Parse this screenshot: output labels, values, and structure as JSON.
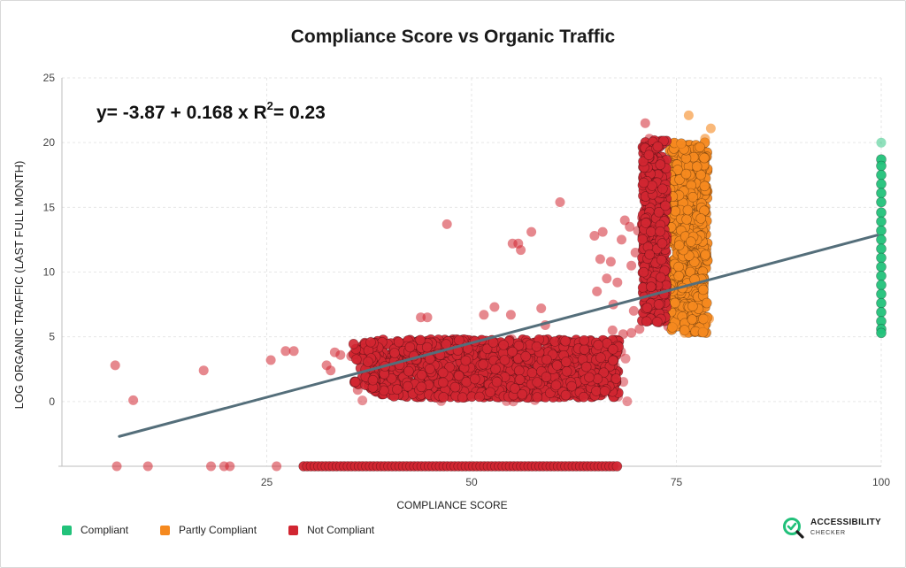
{
  "chart_data": {
    "type": "scatter",
    "title": "Compliance Score vs Organic Traffic",
    "xlabel": "COMPLIANCE SCORE",
    "ylabel": "LOG ORGANIC TRAFFIC (LAST FULL MONTH)",
    "xlim": [
      0,
      100
    ],
    "ylim": [
      -5,
      25
    ],
    "x_ticks": [
      "25",
      "50",
      "75",
      "100"
    ],
    "y_ticks": [
      "0",
      "5",
      "10",
      "15",
      "20",
      "25"
    ],
    "grid": true,
    "legend_position": "bottom-left",
    "annotation": {
      "text_main": "y= -3.87 + 0.168 x R",
      "superscript": "2",
      "text_tail": "= 0.23"
    },
    "regression": {
      "intercept": -3.87,
      "slope": 0.168,
      "r_squared": 0.23,
      "x_range": [
        7,
        99.5
      ]
    },
    "series": [
      {
        "name": "Compliant",
        "color": "#22c27a",
        "description": "Scores of 100, traffic from about 5.3 to 20",
        "points": [
          [
            100,
            20
          ],
          [
            100,
            18.7
          ],
          [
            100,
            18.2
          ],
          [
            100,
            17.5
          ],
          [
            100,
            16.8
          ],
          [
            100,
            16.1
          ],
          [
            100,
            15.4
          ],
          [
            100,
            14.6
          ],
          [
            100,
            13.9
          ],
          [
            100,
            13.2
          ],
          [
            100,
            12.5
          ],
          [
            100,
            11.8
          ],
          [
            100,
            11.1
          ],
          [
            100,
            10.4
          ],
          [
            100,
            9.7
          ],
          [
            100,
            9.0
          ],
          [
            100,
            8.3
          ],
          [
            100,
            7.6
          ],
          [
            100,
            6.9
          ],
          [
            100,
            6.2
          ],
          [
            100,
            5.6
          ],
          [
            100,
            5.3
          ]
        ]
      },
      {
        "name": "Partly Compliant",
        "color": "#f5891f",
        "description": "Dense block at scores 74-79 with traffic 5-20, plus outliers",
        "cluster": {
          "x": [
            74.2,
            78.8
          ],
          "y": [
            5.3,
            20.0
          ]
        },
        "outliers": [
          [
            76.5,
            22.1
          ],
          [
            79.2,
            21.1
          ],
          [
            75.5,
            19.8
          ],
          [
            78.5,
            20.3
          ],
          [
            76,
            5.3
          ],
          [
            78.3,
            5.5
          ],
          [
            74.8,
            5.9
          ],
          [
            79.0,
            6.4
          ]
        ]
      },
      {
        "name": "Not Compliant",
        "color": "#d12631",
        "description": "Dense blocks at scores 37-68 (traffic 0.3-4.8), 71-74 (traffic 6-20) and a floor row at -5",
        "clusters": [
          {
            "x": [
              38,
              68
            ],
            "y": [
              0.3,
              4.8
            ]
          },
          {
            "x": [
              70.8,
              73.8
            ],
            "y": [
              6.0,
              20.2
            ]
          }
        ],
        "floor_row": {
          "x": [
            29.5,
            68
          ],
          "y": -5
        },
        "outliers": [
          [
            6.5,
            2.8
          ],
          [
            6.7,
            -5
          ],
          [
            8.7,
            0.1
          ],
          [
            10.5,
            -5
          ],
          [
            17.3,
            2.4
          ],
          [
            18.2,
            -5
          ],
          [
            19.8,
            -5
          ],
          [
            20.5,
            -5
          ],
          [
            25.5,
            3.2
          ],
          [
            26.2,
            -5
          ],
          [
            27.3,
            3.9
          ],
          [
            28.3,
            3.9
          ],
          [
            32.3,
            2.8
          ],
          [
            32.8,
            2.4
          ],
          [
            33.3,
            3.8
          ],
          [
            34.0,
            3.6
          ],
          [
            35.3,
            3.5
          ],
          [
            36.2,
            1.3
          ],
          [
            36.1,
            0.9
          ],
          [
            37.5,
            3.7
          ],
          [
            43.8,
            6.5
          ],
          [
            44.6,
            6.5
          ],
          [
            47.0,
            13.7
          ],
          [
            52.8,
            7.3
          ],
          [
            51.5,
            6.7
          ],
          [
            54.8,
            6.7
          ],
          [
            55.0,
            12.2
          ],
          [
            55.7,
            12.2
          ],
          [
            56.0,
            11.7
          ],
          [
            57.3,
            13.1
          ],
          [
            58.5,
            7.2
          ],
          [
            60.8,
            15.4
          ],
          [
            59.0,
            5.9
          ],
          [
            65.0,
            12.8
          ],
          [
            65.3,
            8.5
          ],
          [
            65.7,
            11.0
          ],
          [
            66.0,
            13.1
          ],
          [
            66.5,
            9.5
          ],
          [
            67.0,
            10.8
          ],
          [
            67.3,
            7.5
          ],
          [
            67.8,
            9.2
          ],
          [
            68.3,
            12.5
          ],
          [
            68.7,
            14.0
          ],
          [
            69.3,
            13.5
          ],
          [
            69.5,
            10.5
          ],
          [
            69.8,
            7.0
          ],
          [
            70.0,
            11.5
          ],
          [
            70.3,
            13.2
          ],
          [
            70.8,
            14.2
          ],
          [
            71.2,
            21.5
          ],
          [
            71.7,
            20.3
          ],
          [
            72.5,
            19.8
          ],
          [
            67.2,
            5.5
          ],
          [
            68.5,
            5.2
          ],
          [
            69.5,
            5.3
          ],
          [
            70.5,
            5.6
          ],
          [
            73.5,
            6.3
          ],
          [
            74.0,
            5.8
          ]
        ]
      }
    ]
  },
  "legend": {
    "items": [
      {
        "label": "Compliant",
        "color": "#22c27a"
      },
      {
        "label": "Partly Compliant",
        "color": "#f5891f"
      },
      {
        "label": "Not Compliant",
        "color": "#d12631"
      }
    ]
  },
  "brand": {
    "line1": "ACCESSIBILITY",
    "line2": "CHECKER"
  }
}
